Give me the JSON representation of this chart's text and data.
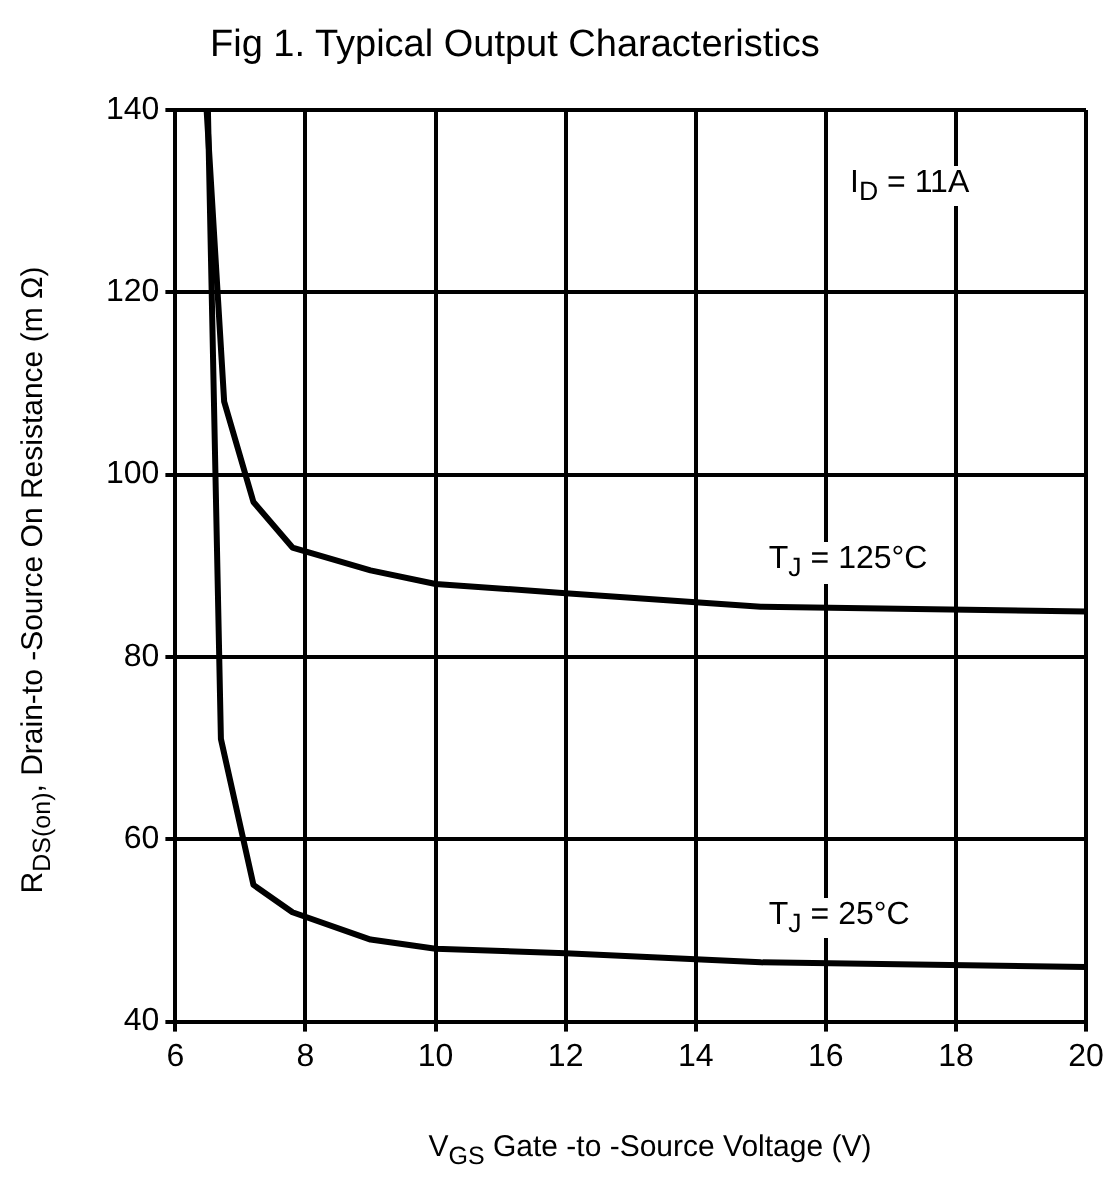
{
  "chart_data": {
    "type": "line",
    "title": "Fig 1.  Typical Output Characteristics",
    "xlabel": "V$_{GS}$  Gate -to -Source Voltage  (V)",
    "ylabel": "R$_{DS(on)}$,  Drain-to -Source On Resistance (m Ω)",
    "annotations": [
      "I$_{D}$ = 11A"
    ],
    "xlim": [
      6,
      20
    ],
    "xticks": [
      6,
      8,
      10,
      12,
      14,
      16,
      18,
      20
    ],
    "ylim": [
      40,
      140
    ],
    "yticks": [
      40,
      60,
      80,
      100,
      120,
      140
    ],
    "grid": true,
    "legend": false,
    "marker": "none",
    "line_style": "solid",
    "series": [
      {
        "name": "T$_{J}$ = 125°C",
        "color": "#000000",
        "x": [
          6.48,
          6.75,
          7.2,
          7.8,
          9,
          10,
          12,
          15,
          20
        ],
        "values": [
          140,
          108,
          97,
          92,
          89.5,
          88,
          87,
          85.5,
          85
        ]
      },
      {
        "name": "T$_{J}$ = 25°C",
        "color": "#000000",
        "x": [
          6.5,
          6.7,
          7.2,
          7.8,
          9,
          10,
          12,
          15,
          20
        ],
        "values": [
          140,
          71,
          55,
          52,
          49,
          48,
          47.5,
          46.5,
          46
        ]
      }
    ]
  }
}
